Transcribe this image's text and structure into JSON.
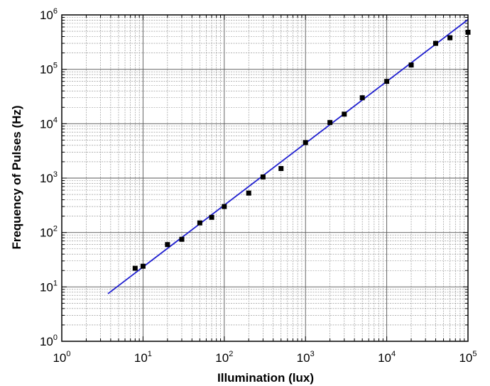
{
  "chart_data": {
    "type": "scatter",
    "title": "",
    "xlabel": "Illumination (lux)",
    "ylabel": "Frequency of Pulses (Hz)",
    "x_scale": "log",
    "y_scale": "log",
    "xlim": [
      1,
      100000
    ],
    "ylim": [
      1,
      1000000
    ],
    "x_tick_labels": [
      {
        "base": "10",
        "exp": "0"
      },
      {
        "base": "10",
        "exp": "1"
      },
      {
        "base": "10",
        "exp": "2"
      },
      {
        "base": "10",
        "exp": "3"
      },
      {
        "base": "10",
        "exp": "4"
      },
      {
        "base": "10",
        "exp": "5"
      }
    ],
    "y_tick_labels": [
      {
        "base": "10",
        "exp": "0"
      },
      {
        "base": "10",
        "exp": "1"
      },
      {
        "base": "10",
        "exp": "2"
      },
      {
        "base": "10",
        "exp": "3"
      },
      {
        "base": "10",
        "exp": "4"
      },
      {
        "base": "10",
        "exp": "5"
      },
      {
        "base": "10",
        "exp": "6"
      }
    ],
    "grid": true,
    "series": [
      {
        "type": "scatter",
        "marker": "square",
        "color": "#000000",
        "x": [
          8,
          10,
          20,
          30,
          50,
          70,
          100,
          200,
          300,
          500,
          1000,
          2000,
          3000,
          5000,
          10000,
          20000,
          40000,
          60000,
          100000
        ],
        "y": [
          22,
          24,
          60,
          75,
          150,
          190,
          300,
          530,
          1050,
          1500,
          4500,
          10500,
          15000,
          30000,
          60000,
          120000,
          300000,
          380000,
          480000
        ]
      },
      {
        "type": "line",
        "color": "#1f1fd0",
        "x": [
          3.7,
          100000
        ],
        "y": [
          7.5,
          820000
        ]
      }
    ]
  }
}
